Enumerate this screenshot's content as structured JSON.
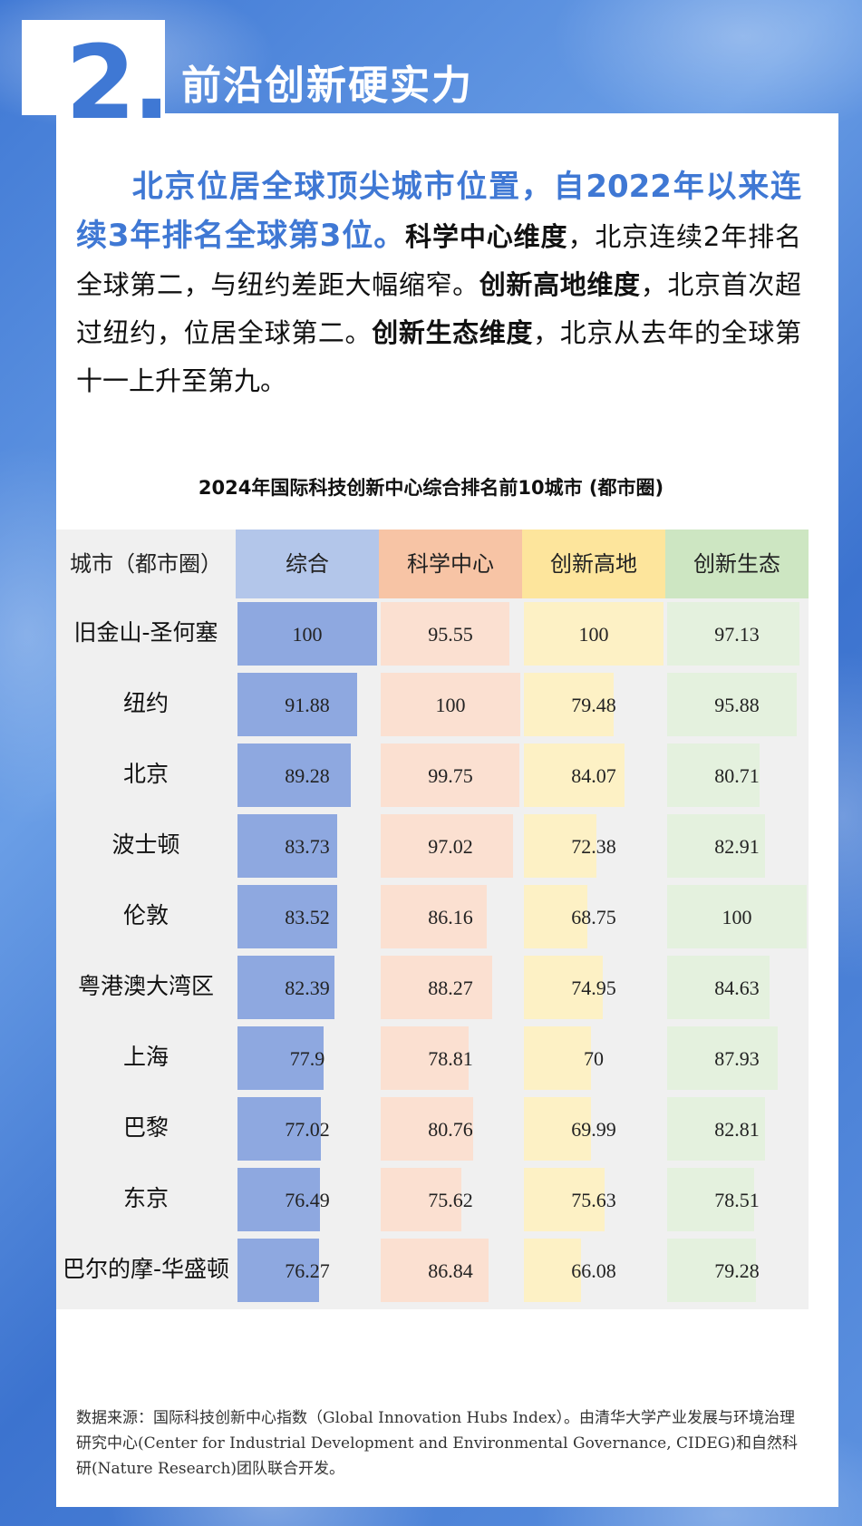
{
  "section": {
    "number": "2.",
    "title": "前沿创新硬实力"
  },
  "intro": {
    "highlight": "北京位居全球顶尖城市位置，自2022年以来连续3年排名全球第3位。",
    "b1": "科学中心维度",
    "t1": "，北京连续2年排名全球第二，与纽约差距大幅缩窄。",
    "b2": "创新高地维度",
    "t2": "，北京首次超过纽约，位居全球第二。",
    "b3": "创新生态维度",
    "t3": "，北京从去年的全球第十一上升至第九。"
  },
  "chart_data": {
    "type": "table",
    "title": "2024年国际科技创新中心综合排名前10城市 (都市圈)",
    "row_header": "城市（都市圈）",
    "columns": [
      {
        "name": "综合",
        "header_color": "#b3c6ea",
        "bar_color": "#8ea8e0"
      },
      {
        "name": "科学中心",
        "header_color": "#f7c4a5",
        "bar_color": "#fbe0d1"
      },
      {
        "name": "创新高地",
        "header_color": "#fde59c",
        "bar_color": "#fdf1c5"
      },
      {
        "name": "创新生态",
        "header_color": "#cde6c2",
        "bar_color": "#e4f1de"
      }
    ],
    "rows": [
      {
        "city": "旧金山-圣何塞",
        "values": [
          100,
          95.55,
          100,
          97.13
        ]
      },
      {
        "city": "纽约",
        "values": [
          91.88,
          100,
          79.48,
          95.88
        ]
      },
      {
        "city": "北京",
        "values": [
          89.28,
          99.75,
          84.07,
          80.71
        ]
      },
      {
        "city": "波士顿",
        "values": [
          83.73,
          97.02,
          72.38,
          82.91
        ]
      },
      {
        "city": "伦敦",
        "values": [
          83.52,
          86.16,
          68.75,
          100
        ]
      },
      {
        "city": "粤港澳大湾区",
        "values": [
          82.39,
          88.27,
          74.95,
          84.63
        ]
      },
      {
        "city": "上海",
        "values": [
          77.9,
          78.81,
          70,
          87.93
        ]
      },
      {
        "city": "巴黎",
        "values": [
          77.02,
          80.76,
          69.99,
          82.81
        ]
      },
      {
        "city": "东京",
        "values": [
          76.49,
          75.62,
          75.63,
          78.51
        ]
      },
      {
        "city": "巴尔的摩-华盛顿",
        "values": [
          76.27,
          86.84,
          66.08,
          79.28
        ]
      }
    ]
  },
  "source": "数据来源：国际科技创新中心指数（Global Innovation Hubs Index）。由清华大学产业发展与环境治理研究中心(Center for Industrial Development and Environmental Governance, CIDEG)和自然科研(Nature Research)团队联合开发。"
}
